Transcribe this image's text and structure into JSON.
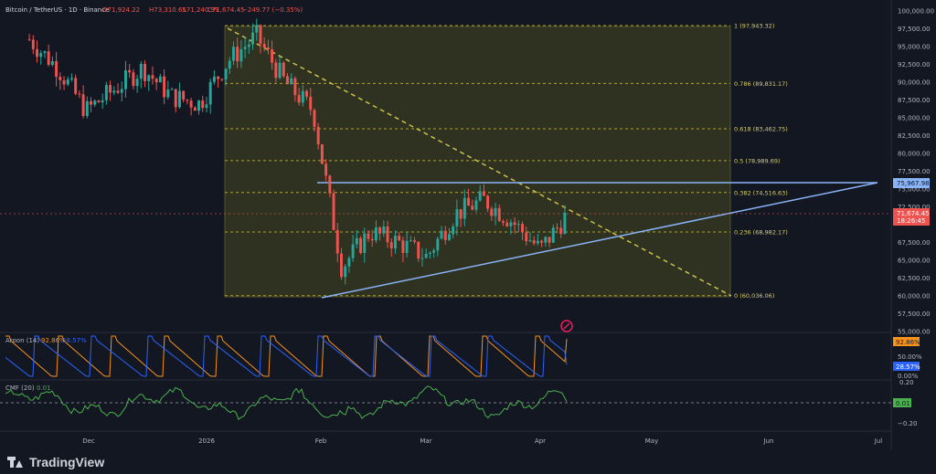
{
  "header": {
    "symbol": "Bitcoin / TetherUS · 1D · Binance",
    "open": "O71,924.22",
    "high": "H73,310.65",
    "low": "L71,240.99",
    "close": "C71,674.45",
    "change": "−249.77 (−0.35%)"
  },
  "price_axis": {
    "ticks": [
      "100,000.00",
      "97,500.00",
      "95,000.00",
      "92,500.00",
      "90,000.00",
      "87,500.00",
      "85,000.00",
      "82,500.00",
      "80,000.00",
      "77,500.00",
      "75,000.00",
      "72,500.00",
      "67,500.00",
      "65,000.00",
      "62,500.00",
      "60,000.00",
      "57,500.00",
      "55,000.00"
    ],
    "resistance_label": "75,967.98",
    "last_price_label": "71,674.45",
    "countdown_label": "18:26:45"
  },
  "fibonacci": {
    "levels": [
      {
        "label": "1 (97,943.32)",
        "value": 97943.32
      },
      {
        "label": "0.786 (89,831.17)",
        "value": 89831.17
      },
      {
        "label": "0.618 (83,462.75)",
        "value": 83462.75
      },
      {
        "label": "0.5 (78,989.69)",
        "value": 78989.69
      },
      {
        "label": "0.382 (74,516.63)",
        "value": 74516.63
      },
      {
        "label": "0.236 (68,982.17)",
        "value": 68982.17
      },
      {
        "label": "0 (60,036.06)",
        "value": 60036.06
      }
    ]
  },
  "aroon": {
    "label": "Aroon (14)",
    "up_value": "92.86%",
    "down_value": "28.57%",
    "axis_labels": [
      "50.00%",
      "0.00%"
    ],
    "up_color": "#f7931a",
    "down_color": "#2962ff"
  },
  "cmf": {
    "label": "CMF (20)",
    "value": "0.01",
    "axis_labels": [
      "0.20",
      "−0.20"
    ],
    "color": "#4caf50"
  },
  "time_axis": {
    "labels": [
      "Dec",
      "2026",
      "Feb",
      "Mar",
      "Apr",
      "May",
      "Jun",
      "Jul"
    ]
  },
  "footer": {
    "brand": "TradingView"
  },
  "colors": {
    "background": "#131722",
    "candle_up": "#26a69a",
    "candle_down": "#ef5350",
    "fib_zone": "#3c3c22",
    "fib_line": "#c9c24a",
    "trend_line": "#8ab4f8",
    "descending_line": "#c9c24a",
    "price_line": "#ef5350"
  },
  "chart_data": {
    "type": "candlestick",
    "symbol": "BTC/USDT",
    "timeframe": "1D",
    "price_axis_range": [
      55000,
      100000
    ],
    "candles_weekly_approx": [
      {
        "week": "Nov-w3",
        "open": 96000,
        "close": 92000
      },
      {
        "week": "Nov-w4",
        "open": 92000,
        "close": 86000
      },
      {
        "week": "Dec-w1",
        "open": 86000,
        "close": 89000
      },
      {
        "week": "Dec-w2",
        "open": 89000,
        "close": 92000
      },
      {
        "week": "Dec-w3",
        "open": 92000,
        "close": 88000
      },
      {
        "week": "Dec-w4",
        "open": 88000,
        "close": 87000
      },
      {
        "week": "Jan-w1",
        "open": 87000,
        "close": 93000
      },
      {
        "week": "Jan-w2",
        "open": 93000,
        "close": 96500
      },
      {
        "week": "Jan-w3",
        "open": 96500,
        "close": 90000
      },
      {
        "week": "Jan-w4",
        "open": 90000,
        "close": 86000
      },
      {
        "week": "Feb-w1",
        "open": 86000,
        "close": 64000
      },
      {
        "week": "Feb-w2",
        "open": 64000,
        "close": 69000
      },
      {
        "week": "Feb-w3",
        "open": 69000,
        "close": 67500
      },
      {
        "week": "Feb-w4",
        "open": 67500,
        "close": 65500
      },
      {
        "week": "Mar-w1",
        "open": 65500,
        "close": 71500
      },
      {
        "week": "Mar-w2",
        "open": 71500,
        "close": 73500
      },
      {
        "week": "Mar-w3",
        "open": 73500,
        "close": 70500
      },
      {
        "week": "Mar-w4",
        "open": 70500,
        "close": 66500
      },
      {
        "week": "Apr-w1",
        "open": 66500,
        "close": 71674.45
      }
    ]
  }
}
